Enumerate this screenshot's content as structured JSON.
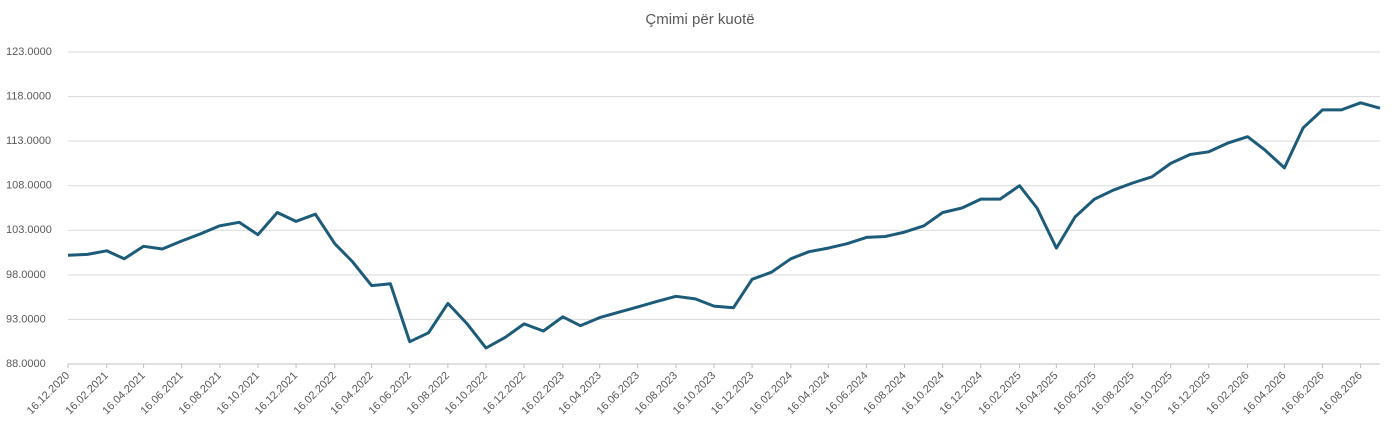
{
  "chart_data": {
    "type": "line",
    "title": "Çmimi për kuotë",
    "x": [
      "16.12.2020",
      "16.01.2021",
      "16.02.2021",
      "16.03.2021",
      "16.04.2021",
      "16.05.2021",
      "16.06.2021",
      "16.07.2021",
      "16.08.2021",
      "16.09.2021",
      "16.10.2021",
      "16.11.2021",
      "16.12.2021",
      "16.01.2022",
      "16.02.2022",
      "16.03.2022",
      "16.04.2022",
      "16.05.2022",
      "16.06.2022",
      "16.07.2022",
      "16.08.2022",
      "16.09.2022",
      "16.10.2022",
      "16.11.2022",
      "16.12.2022",
      "16.01.2023",
      "16.02.2023",
      "16.03.2023",
      "16.04.2023",
      "16.05.2023",
      "16.06.2023",
      "16.07.2023",
      "16.08.2023",
      "16.09.2023",
      "16.10.2023",
      "16.11.2023",
      "16.12.2023",
      "16.01.2024",
      "16.02.2024",
      "16.03.2024",
      "16.04.2024",
      "16.05.2024",
      "16.06.2024",
      "16.07.2024",
      "16.08.2024",
      "16.09.2024",
      "16.10.2024",
      "16.11.2024",
      "16.12.2024",
      "16.01.2025",
      "16.02.2025",
      "16.03.2025",
      "16.04.2025",
      "16.05.2025",
      "16.06.2025",
      "16.07.2025",
      "16.08.2025",
      "16.09.2025",
      "16.10.2025",
      "16.11.2025",
      "16.12.2025",
      "16.01.2026",
      "16.02.2026",
      "16.03.2026",
      "16.04.2026",
      "16.05.2026",
      "16.06.2026",
      "16.07.2026",
      "16.08.2026",
      "16.09.2026"
    ],
    "series": [
      {
        "name": "Çmimi për kuotë",
        "color": "#1d5b7a",
        "values": [
          100.2,
          100.3,
          100.7,
          99.8,
          101.2,
          100.9,
          101.8,
          102.6,
          103.5,
          103.9,
          102.5,
          105.0,
          104.0,
          104.8,
          101.5,
          99.5,
          96.8,
          97.0,
          90.5,
          91.5,
          94.8,
          92.5,
          89.8,
          91.0,
          92.5,
          91.7,
          93.3,
          92.3,
          93.2,
          93.8,
          94.4,
          95.0,
          95.6,
          95.3,
          94.5,
          94.3,
          97.5,
          98.3,
          99.8,
          100.6,
          101.0,
          101.5,
          102.2,
          102.3,
          102.8,
          103.5,
          105.0,
          105.5,
          106.5,
          106.5,
          108.0,
          105.5,
          101.0,
          104.5,
          106.5,
          107.5,
          108.3,
          109.0,
          110.5,
          111.5,
          111.8,
          112.8,
          113.5,
          112.0,
          110.0,
          114.5,
          116.5,
          116.5,
          117.3,
          116.7
        ]
      }
    ],
    "xlim": [
      "16.12.2020",
      "16.09.2026"
    ],
    "xticks": [
      "16.12.2020",
      "16.02.2021",
      "16.04.2021",
      "16.06.2021",
      "16.08.2021",
      "16.10.2021",
      "16.12.2021",
      "16.02.2022",
      "16.04.2022",
      "16.06.2022",
      "16.08.2022",
      "16.10.2022",
      "16.12.2022",
      "16.02.2023",
      "16.04.2023",
      "16.06.2023",
      "16.08.2023",
      "16.10.2023",
      "16.12.2023",
      "16.02.2024",
      "16.04.2024",
      "16.06.2024",
      "16.08.2024",
      "16.10.2024",
      "16.12.2024",
      "16.02.2025",
      "16.04.2025",
      "16.06.2025",
      "16.08.2025",
      "16.10.2025",
      "16.12.2025",
      "16.02.2026",
      "16.04.2026",
      "16.06.2026",
      "16.08.2026"
    ],
    "ylim": [
      88,
      123
    ],
    "yticks": [
      {
        "value": 88,
        "label": "88.0000"
      },
      {
        "value": 93,
        "label": "93.0000"
      },
      {
        "value": 98,
        "label": "98.0000"
      },
      {
        "value": 103,
        "label": "103.0000"
      },
      {
        "value": 108,
        "label": "108.0000"
      },
      {
        "value": 113,
        "label": "113.0000"
      },
      {
        "value": 118,
        "label": "118.0000"
      },
      {
        "value": 123,
        "label": "123.0000"
      }
    ],
    "grid": true
  }
}
